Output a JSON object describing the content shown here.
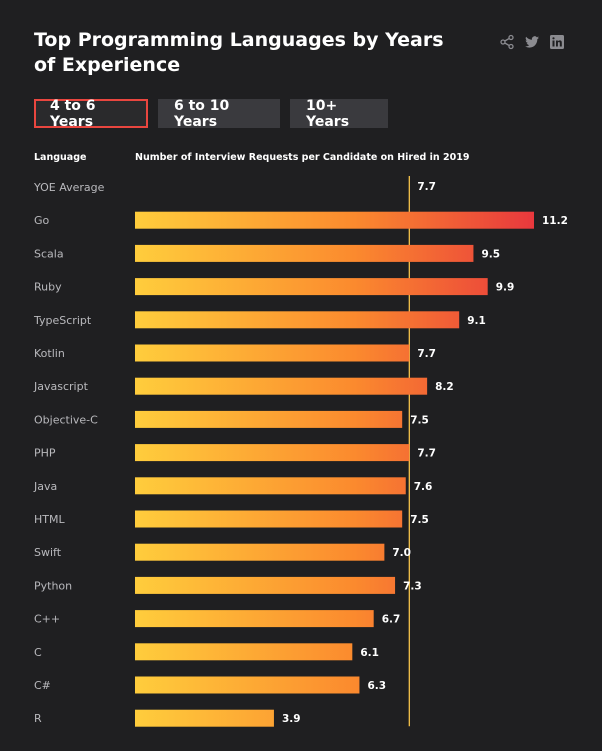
{
  "header": {
    "title": "Top Programming Languages by Years of Experience"
  },
  "share": {
    "icons": [
      "share-icon",
      "twitter-icon",
      "linkedin-icon"
    ]
  },
  "tabs": [
    {
      "label": "4 to 6 Years",
      "active": true
    },
    {
      "label": "6 to 10 Years",
      "active": false
    },
    {
      "label": "10+ Years",
      "active": false
    }
  ],
  "columns": {
    "language": "Language",
    "metric": "Number of Interview Requests per Candidate on Hired in 2019"
  },
  "colors": {
    "background": "#1f1f21",
    "bar_start": "#ffcd3c",
    "bar_end": "#e8383d",
    "reference_line": "#f5c24a",
    "active_tab_border": "#e9463f"
  },
  "chart_data": {
    "type": "bar",
    "orientation": "horizontal",
    "title": "Top Programming Languages by Years of Experience",
    "xlabel": "Number of Interview Requests per Candidate on Hired in 2019",
    "ylabel": "Language",
    "reference": {
      "label": "YOE Average",
      "value": 7.7,
      "value_label": "7.7"
    },
    "categories": [
      "Go",
      "Scala",
      "Ruby",
      "TypeScript",
      "Kotlin",
      "Javascript",
      "Objective-C",
      "PHP",
      "Java",
      "HTML",
      "Swift",
      "Python",
      "C++",
      "C",
      "C#",
      "R"
    ],
    "values": [
      11.2,
      9.5,
      9.9,
      9.1,
      7.7,
      8.2,
      7.5,
      7.7,
      7.6,
      7.5,
      7.0,
      7.3,
      6.7,
      6.1,
      6.3,
      3.9
    ],
    "value_labels": [
      "11.2",
      "9.5",
      "9.9",
      "9.1",
      "7.7",
      "8.2",
      "7.5",
      "7.7",
      "7.6",
      "7.5",
      "7.0",
      "7.3",
      "6.7",
      "6.1",
      "6.3",
      "3.9"
    ],
    "xlim": [
      0,
      11.2
    ],
    "grid": false,
    "legend": "none"
  }
}
